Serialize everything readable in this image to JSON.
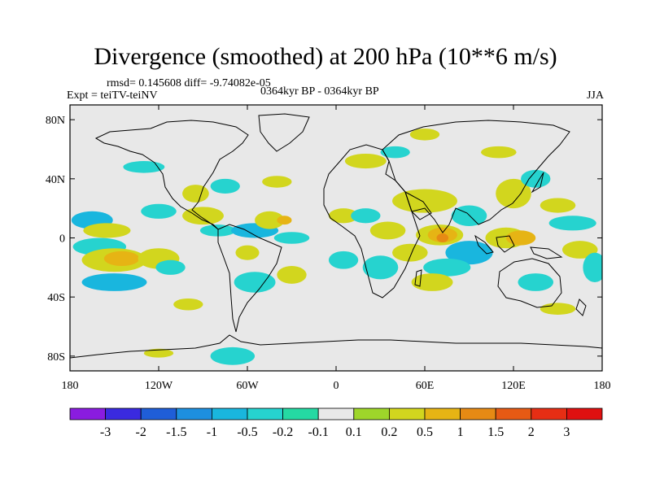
{
  "chart_data": {
    "type": "heatmap",
    "title": "Divergence (smoothed) at 200 hPa (10**6 m/s)",
    "stats_label": "rmsd= 0.145608 diff= -9.74082e-05",
    "left_label": "Expt = teiTV-teiNV",
    "center_label": "0364kyr BP - 0364kyr BP",
    "right_label": "JJA",
    "xlabel": "",
    "ylabel": "",
    "x_ticks": [
      "180",
      "120W",
      "60W",
      "0",
      "60E",
      "120E",
      "180"
    ],
    "x_tick_values": [
      -180,
      -120,
      -60,
      0,
      60,
      120,
      180
    ],
    "y_ticks": [
      "80N",
      "40N",
      "0",
      "40S",
      "80S"
    ],
    "y_tick_values": [
      80,
      40,
      0,
      -40,
      -80
    ],
    "xlim": [
      -180,
      180
    ],
    "ylim": [
      -90,
      90
    ],
    "colorbar": {
      "labels": [
        "-3",
        "-2",
        "-1.5",
        "-1",
        "-0.5",
        "-0.2",
        "-0.1",
        "0.1",
        "0.2",
        "0.5",
        "1",
        "1.5",
        "2",
        "3"
      ],
      "colors": [
        "#8a1ce0",
        "#3a2ae0",
        "#1f5ed8",
        "#1d8fe0",
        "#19b6de",
        "#26d3cf",
        "#25d9a3",
        "#e8e8e8",
        "#9ed62a",
        "#d2d61e",
        "#e6b414",
        "#e68a14",
        "#e65a14",
        "#e62e14",
        "#e01010"
      ]
    },
    "fields": [
      {
        "lon": -165,
        "lat": 12,
        "rlon": 14,
        "rlat": 6,
        "value": -0.6
      },
      {
        "lon": -155,
        "lat": 5,
        "rlon": 16,
        "rlat": 5,
        "value": 0.3
      },
      {
        "lon": -160,
        "lat": -6,
        "rlon": 18,
        "rlat": 6,
        "value": -0.4
      },
      {
        "lon": -150,
        "lat": -15,
        "rlon": 22,
        "rlat": 8,
        "value": 0.35
      },
      {
        "lon": -145,
        "lat": -14,
        "rlon": 12,
        "rlat": 5,
        "value": 0.7
      },
      {
        "lon": -150,
        "lat": -30,
        "rlon": 22,
        "rlat": 6,
        "value": -0.6
      },
      {
        "lon": -120,
        "lat": -14,
        "rlon": 14,
        "rlat": 7,
        "value": 0.35
      },
      {
        "lon": -112,
        "lat": -20,
        "rlon": 10,
        "rlat": 5,
        "value": -0.4
      },
      {
        "lon": -120,
        "lat": 18,
        "rlon": 12,
        "rlat": 5,
        "value": -0.3
      },
      {
        "lon": -95,
        "lat": 30,
        "rlon": 9,
        "rlat": 6,
        "value": 0.3
      },
      {
        "lon": -75,
        "lat": 35,
        "rlon": 10,
        "rlat": 5,
        "value": -0.4
      },
      {
        "lon": -90,
        "lat": 15,
        "rlon": 14,
        "rlat": 6,
        "value": 0.3
      },
      {
        "lon": -80,
        "lat": 5,
        "rlon": 12,
        "rlat": 4,
        "value": -0.4
      },
      {
        "lon": -55,
        "lat": 5,
        "rlon": 16,
        "rlat": 5,
        "value": -0.6
      },
      {
        "lon": -45,
        "lat": 12,
        "rlon": 10,
        "rlat": 6,
        "value": 0.35
      },
      {
        "lon": -35,
        "lat": 12,
        "rlon": 5,
        "rlat": 3,
        "value": 0.9
      },
      {
        "lon": -30,
        "lat": 0,
        "rlon": 12,
        "rlat": 4,
        "value": -0.3
      },
      {
        "lon": -60,
        "lat": -10,
        "rlon": 8,
        "rlat": 5,
        "value": 0.3
      },
      {
        "lon": -55,
        "lat": -30,
        "rlon": 14,
        "rlat": 7,
        "value": -0.5
      },
      {
        "lon": -30,
        "lat": -25,
        "rlon": 10,
        "rlat": 6,
        "value": 0.3
      },
      {
        "lon": -40,
        "lat": 38,
        "rlon": 10,
        "rlat": 4,
        "value": 0.3
      },
      {
        "lon": 5,
        "lat": 15,
        "rlon": 10,
        "rlat": 5,
        "value": 0.35
      },
      {
        "lon": 20,
        "lat": 15,
        "rlon": 10,
        "rlat": 5,
        "value": -0.4
      },
      {
        "lon": 5,
        "lat": -15,
        "rlon": 10,
        "rlat": 6,
        "value": -0.4
      },
      {
        "lon": 20,
        "lat": 52,
        "rlon": 14,
        "rlat": 5,
        "value": 0.3
      },
      {
        "lon": 40,
        "lat": 58,
        "rlon": 10,
        "rlat": 4,
        "value": -0.4
      },
      {
        "lon": 60,
        "lat": 70,
        "rlon": 10,
        "rlat": 4,
        "value": 0.3
      },
      {
        "lon": 35,
        "lat": 5,
        "rlon": 12,
        "rlat": 6,
        "value": 0.3
      },
      {
        "lon": 30,
        "lat": -20,
        "rlon": 12,
        "rlat": 8,
        "value": -0.5
      },
      {
        "lon": 50,
        "lat": -10,
        "rlon": 12,
        "rlat": 6,
        "value": 0.35
      },
      {
        "lon": 70,
        "lat": 2,
        "rlon": 16,
        "rlat": 7,
        "value": 0.35
      },
      {
        "lon": 72,
        "lat": 2,
        "rlon": 10,
        "rlat": 5,
        "value": 0.7
      },
      {
        "lon": 72,
        "lat": 0,
        "rlon": 4,
        "rlat": 3,
        "value": 1.2
      },
      {
        "lon": 60,
        "lat": 25,
        "rlon": 22,
        "rlat": 8,
        "value": 0.3
      },
      {
        "lon": 90,
        "lat": 15,
        "rlon": 12,
        "rlat": 7,
        "value": -0.5
      },
      {
        "lon": 90,
        "lat": -10,
        "rlon": 16,
        "rlat": 8,
        "value": -0.6
      },
      {
        "lon": 75,
        "lat": -20,
        "rlon": 16,
        "rlat": 6,
        "value": -0.4
      },
      {
        "lon": 65,
        "lat": -30,
        "rlon": 14,
        "rlat": 6,
        "value": 0.3
      },
      {
        "lon": 115,
        "lat": 0,
        "rlon": 14,
        "rlat": 7,
        "value": 0.35
      },
      {
        "lon": 125,
        "lat": 0,
        "rlon": 10,
        "rlat": 5,
        "value": 0.8
      },
      {
        "lon": 120,
        "lat": 30,
        "rlon": 12,
        "rlat": 10,
        "value": 0.3
      },
      {
        "lon": 135,
        "lat": 40,
        "rlon": 10,
        "rlat": 6,
        "value": -0.4
      },
      {
        "lon": 150,
        "lat": 22,
        "rlon": 12,
        "rlat": 5,
        "value": 0.3
      },
      {
        "lon": 160,
        "lat": 10,
        "rlon": 16,
        "rlat": 5,
        "value": -0.4
      },
      {
        "lon": 165,
        "lat": -8,
        "rlon": 12,
        "rlat": 6,
        "value": 0.35
      },
      {
        "lon": 135,
        "lat": -30,
        "rlon": 12,
        "rlat": 6,
        "value": -0.5
      },
      {
        "lon": 175,
        "lat": -20,
        "rlon": 8,
        "rlat": 10,
        "value": -0.5
      },
      {
        "lon": 110,
        "lat": 58,
        "rlon": 12,
        "rlat": 4,
        "value": 0.3
      },
      {
        "lon": -130,
        "lat": 48,
        "rlon": 14,
        "rlat": 4,
        "value": -0.4
      },
      {
        "lon": -70,
        "lat": -80,
        "rlon": 15,
        "rlat": 6,
        "value": -0.4
      },
      {
        "lon": -120,
        "lat": -78,
        "rlon": 10,
        "rlat": 3,
        "value": 0.3
      },
      {
        "lon": -100,
        "lat": -45,
        "rlon": 10,
        "rlat": 4,
        "value": 0.3
      },
      {
        "lon": 150,
        "lat": -48,
        "rlon": 12,
        "rlat": 4,
        "value": 0.3
      }
    ]
  }
}
